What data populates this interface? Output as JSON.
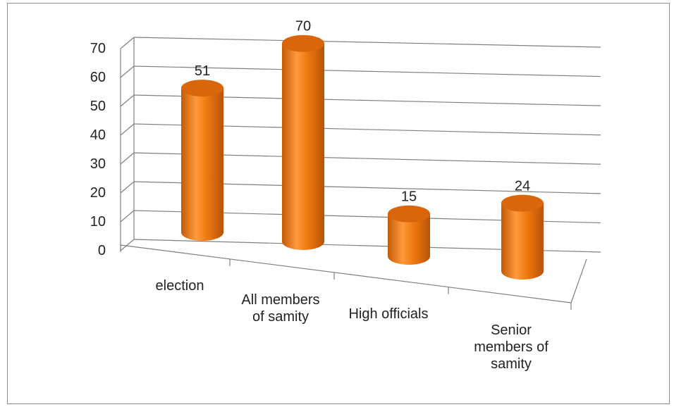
{
  "chart_data": {
    "type": "bar",
    "style": "3d-cylinder",
    "title": "",
    "xlabel": "",
    "ylabel": "",
    "categories": [
      [
        "election"
      ],
      [
        "All members",
        "of samity"
      ],
      [
        "High officials"
      ],
      [
        "Senior",
        "members of",
        "samity"
      ]
    ],
    "series": [
      {
        "values": [
          51,
          70,
          15,
          24
        ]
      }
    ],
    "ylim": [
      0,
      70
    ],
    "yticks": [
      0,
      10,
      20,
      30,
      40,
      50,
      60,
      70
    ],
    "grid": true,
    "legend": "none",
    "colors": {
      "bar_light": "#ff9a3c",
      "bar_mid": "#f07a10",
      "bar_dark": "#b8520a",
      "bar_top": "#d9660a",
      "gridline": "#808080",
      "text": "#222222"
    }
  }
}
